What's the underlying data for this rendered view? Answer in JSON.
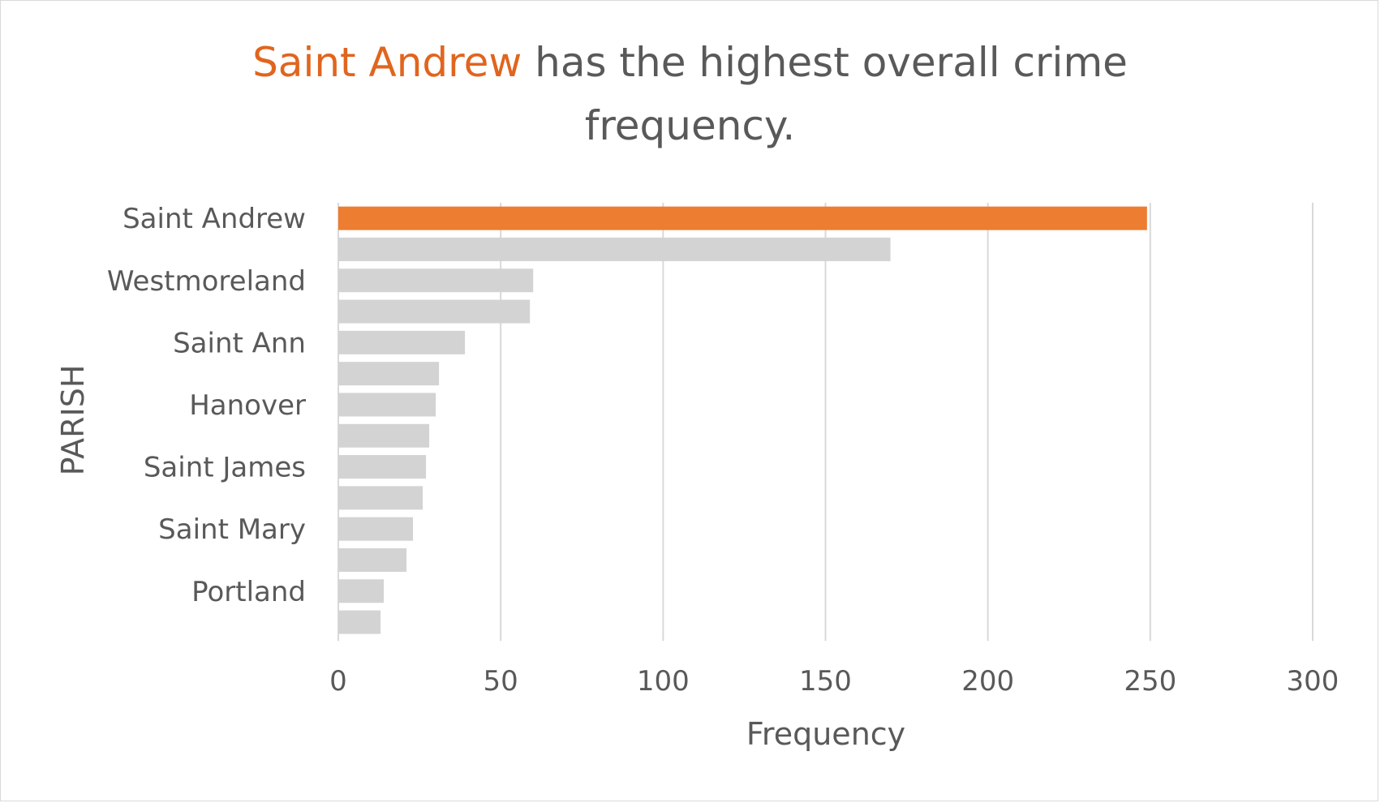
{
  "title": {
    "highlight": "Saint Andrew",
    "rest": " has the highest overall crime",
    "line2": "frequency."
  },
  "colors": {
    "highlight": "#ED7D31",
    "bar": "#D3D3D3",
    "grid": "#D9D9D9",
    "text": "#595959"
  },
  "chart_data": {
    "type": "bar",
    "orientation": "horizontal",
    "xlabel": "Frequency",
    "ylabel": "PARISH",
    "xlim": [
      0,
      300
    ],
    "xticks": [
      "0",
      "50",
      "100",
      "150",
      "200",
      "250",
      "300"
    ],
    "grid": true,
    "categories": [
      "Saint Andrew",
      "",
      "Westmoreland",
      "",
      "Saint Ann",
      "",
      "Hanover",
      "",
      "Saint James",
      "",
      "Saint Mary",
      "",
      "Portland",
      ""
    ],
    "values": [
      249,
      170,
      60,
      59,
      39,
      31,
      30,
      28,
      27,
      26,
      23,
      21,
      14,
      13
    ],
    "highlighted_index": 0
  }
}
